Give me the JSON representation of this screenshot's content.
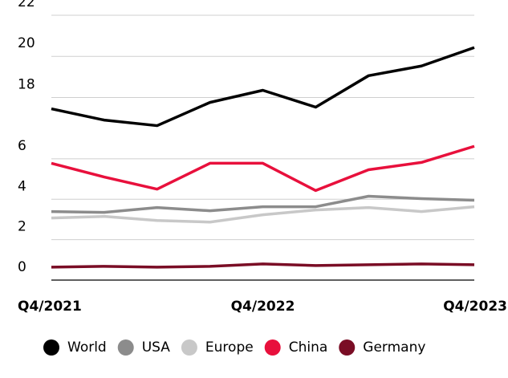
{
  "chart_data": {
    "type": "line",
    "categories": [
      "Q4/2021",
      null,
      null,
      null,
      "Q4/2022",
      null,
      null,
      null,
      "Q4/2023"
    ],
    "series": [
      {
        "name": "World",
        "color": "#000000",
        "values": [
          17.45,
          16.9,
          16.63,
          17.76,
          18.35,
          17.53,
          19.06,
          19.53,
          20.43
        ]
      },
      {
        "name": "USA",
        "color": "#8c8c8c",
        "values": [
          3.39,
          3.35,
          3.59,
          3.43,
          3.63,
          3.63,
          4.15,
          4.03,
          3.95
        ]
      },
      {
        "name": "Europe",
        "color": "#c8c8c8",
        "values": [
          3.07,
          3.15,
          2.95,
          2.87,
          3.23,
          3.47,
          3.59,
          3.39,
          3.63
        ]
      },
      {
        "name": "China",
        "color": "#e8103c",
        "values": [
          5.78,
          5.1,
          4.5,
          5.78,
          5.78,
          4.43,
          5.46,
          5.82,
          6.62
        ]
      },
      {
        "name": "Germany",
        "color": "#7a0d25",
        "values": [
          0.64,
          0.68,
          0.64,
          0.68,
          0.8,
          0.72,
          0.76,
          0.8,
          0.76
        ]
      }
    ],
    "ylim": [
      0,
      22
    ],
    "yticks": [
      0,
      2,
      4,
      6,
      18,
      20,
      22
    ],
    "y_break": [
      7,
      16
    ],
    "grid": true,
    "legend": "bottom"
  }
}
